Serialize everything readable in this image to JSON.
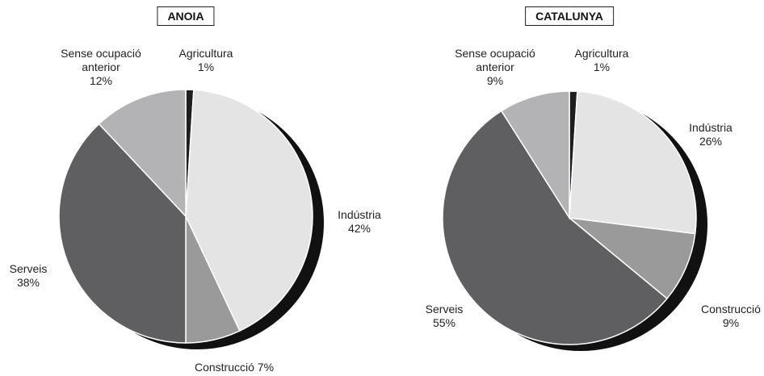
{
  "chart_data": [
    {
      "type": "pie",
      "title": "ANOIA",
      "categories": [
        "Agricultura",
        "Indústria",
        "Construcció",
        "Serveis",
        "Sense ocupació anterior"
      ],
      "values": [
        1,
        42,
        7,
        38,
        12
      ],
      "value_labels": [
        "1%",
        "42%",
        "7%",
        "38%",
        "12%"
      ],
      "colors": [
        "#1e1e1e",
        "#e4e4e4",
        "#9a9a9a",
        "#5f5f61",
        "#b3b3b5"
      ]
    },
    {
      "type": "pie",
      "title": "CATALUNYA",
      "categories": [
        "Agricultura",
        "Indústria",
        "Construcció",
        "Serveis",
        "Sense ocupació anterior"
      ],
      "values": [
        1,
        26,
        9,
        55,
        9
      ],
      "value_labels": [
        "1%",
        "26%",
        "9%",
        "55%",
        "9%"
      ],
      "colors": [
        "#1e1e1e",
        "#e4e4e4",
        "#9a9a9a",
        "#5f5f61",
        "#b3b3b5"
      ]
    }
  ]
}
